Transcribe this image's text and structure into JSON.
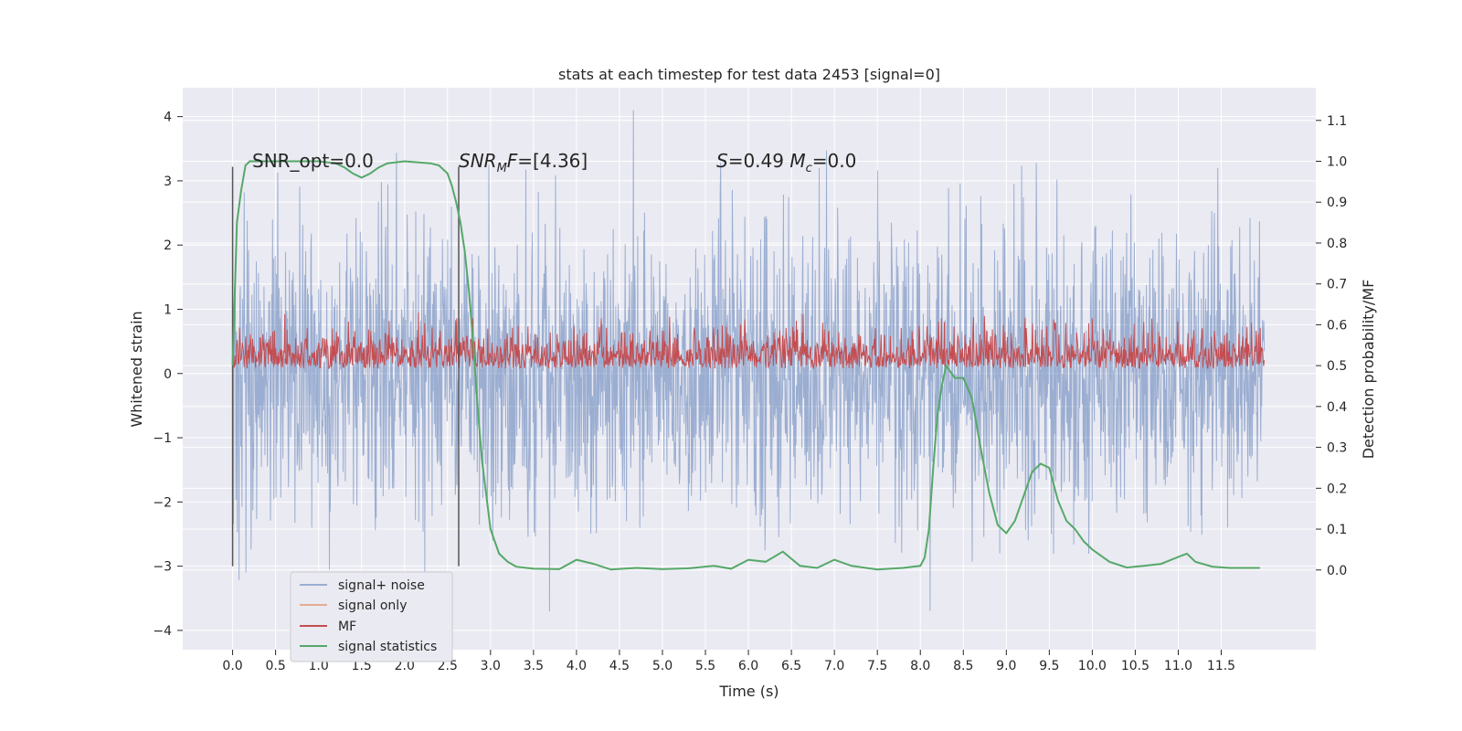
{
  "chart_data": {
    "type": "line",
    "title": "stats at each timestep for test data 2453 [signal=0]",
    "xlabel": "Time (s)",
    "ylabel_left": "Whitened strain",
    "ylabel_right": "Detection probability/MF",
    "xlim": [
      -0.58,
      12.6
    ],
    "ylim_left": [
      -4.3,
      4.45
    ],
    "ylim_right": [
      -0.195,
      1.18
    ],
    "x_ticks": [
      "0.0",
      "0.5",
      "1.0",
      "1.5",
      "2.0",
      "2.5",
      "3.0",
      "3.5",
      "4.0",
      "4.5",
      "5.0",
      "5.5",
      "6.0",
      "6.5",
      "7.0",
      "7.5",
      "8.0",
      "8.5",
      "9.0",
      "9.5",
      "10.0",
      "10.5",
      "11.0",
      "11.5"
    ],
    "y_ticks_left": [
      "4",
      "3",
      "2",
      "1",
      "0",
      "−1",
      "−2",
      "−3",
      "−4"
    ],
    "y_ticks_right": [
      "1.1",
      "1.0",
      "0.9",
      "0.8",
      "0.7",
      "0.6",
      "0.5",
      "0.4",
      "0.3",
      "0.2",
      "0.1",
      "0.0"
    ],
    "grid": true,
    "legend_position": "lower-left",
    "annotations": [
      {
        "text": "SNR_opt=0.0",
        "x": 0.2,
        "y": 3.3
      },
      {
        "text": "SNR_M F=[4.36]",
        "x": 2.62,
        "y": 3.3
      },
      {
        "text": "S=0.49   M_c=0.0",
        "x": 5.6,
        "y": 3.3
      }
    ],
    "vlines": [
      {
        "x": 0.0,
        "y0": -3.0,
        "y1": 3.22
      },
      {
        "x": 2.63,
        "y0": -3.0,
        "y1": 3.22
      }
    ],
    "series": [
      {
        "name": "signal+ noise",
        "color": "#4c72b0",
        "axis": "left",
        "x_range": [
          0.0,
          12.0
        ],
        "amplitude_sigma": 1.0
      },
      {
        "name": "signal only",
        "color": "#dd8452",
        "axis": "left",
        "values": []
      },
      {
        "name": "MF",
        "color": "#c44e52",
        "axis": "left",
        "x_range": [
          0.0,
          12.0
        ],
        "y_band": [
          0.0,
          0.95
        ]
      },
      {
        "name": "signal statistics",
        "color": "#55a868",
        "axis": "right",
        "x": [
          0.0,
          0.05,
          0.1,
          0.15,
          0.2,
          0.3,
          0.5,
          1.0,
          1.2,
          1.3,
          1.4,
          1.5,
          1.6,
          1.7,
          1.8,
          2.0,
          2.3,
          2.4,
          2.5,
          2.55,
          2.6,
          2.65,
          2.7,
          2.75,
          2.8,
          2.85,
          2.9,
          3.0,
          3.1,
          3.2,
          3.3,
          3.5,
          3.8,
          4.0,
          4.2,
          4.4,
          4.7,
          5.0,
          5.3,
          5.6,
          5.8,
          6.0,
          6.2,
          6.4,
          6.6,
          6.8,
          7.0,
          7.2,
          7.5,
          7.8,
          8.0,
          8.05,
          8.1,
          8.15,
          8.2,
          8.25,
          8.3,
          8.4,
          8.5,
          8.6,
          8.7,
          8.8,
          8.9,
          9.0,
          9.1,
          9.2,
          9.3,
          9.4,
          9.5,
          9.6,
          9.7,
          9.8,
          9.9,
          10.0,
          10.2,
          10.4,
          10.6,
          10.8,
          11.0,
          11.1,
          11.2,
          11.4,
          11.6,
          11.8,
          11.95
        ],
        "values": [
          0.5,
          0.85,
          0.93,
          0.99,
          1.0,
          1.0,
          1.0,
          1.0,
          0.995,
          0.985,
          0.97,
          0.96,
          0.97,
          0.985,
          0.995,
          1.0,
          0.995,
          0.99,
          0.97,
          0.94,
          0.9,
          0.85,
          0.78,
          0.68,
          0.55,
          0.4,
          0.27,
          0.1,
          0.04,
          0.02,
          0.008,
          0.003,
          0.002,
          0.025,
          0.015,
          0.001,
          0.005,
          0.002,
          0.004,
          0.01,
          0.003,
          0.025,
          0.02,
          0.045,
          0.01,
          0.005,
          0.025,
          0.01,
          0.001,
          0.005,
          0.01,
          0.03,
          0.1,
          0.25,
          0.38,
          0.45,
          0.5,
          0.47,
          0.47,
          0.42,
          0.3,
          0.19,
          0.11,
          0.09,
          0.12,
          0.18,
          0.24,
          0.26,
          0.25,
          0.17,
          0.12,
          0.1,
          0.07,
          0.05,
          0.02,
          0.006,
          0.01,
          0.015,
          0.032,
          0.04,
          0.02,
          0.008,
          0.005,
          0.005,
          0.005
        ]
      }
    ]
  }
}
